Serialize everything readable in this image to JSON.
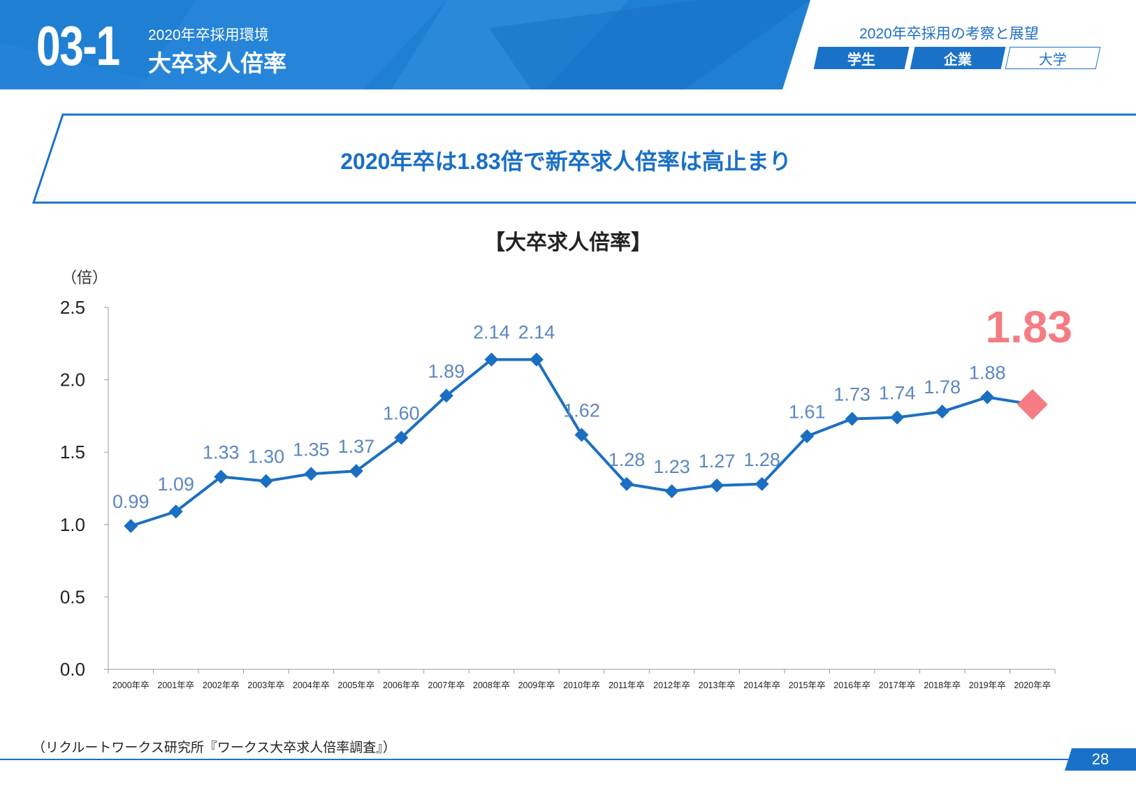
{
  "header": {
    "section_number": "03-1",
    "section_subtitle": "2020年卒採用環境",
    "section_title": "大卒求人倍率",
    "series_title": "2020年卒採用の考察と展望",
    "tags": [
      "学生",
      "企業",
      "大学"
    ],
    "active_tags": [
      "学生",
      "企業"
    ]
  },
  "headline": "2020年卒は1.83倍で新卒求人倍率は高止まり",
  "footnote": "（リクルートワークス研究所『ワークス大卒求人倍率調査』）",
  "page_number": "28",
  "colors": {
    "brand_blue": "#1a72c8",
    "line_blue": "#1b6fc2",
    "label_blue": "#5b87c0",
    "highlight": "#f47c82"
  },
  "chart_data": {
    "type": "line",
    "title": "【大卒求人倍率】",
    "ylabel": "（倍）",
    "xlabel": "",
    "ylim": [
      0,
      2.5
    ],
    "yticks": [
      "0.0",
      "0.5",
      "1.0",
      "1.5",
      "2.0",
      "2.5"
    ],
    "categories": [
      "2000年卒",
      "2001年卒",
      "2002年卒",
      "2003年卒",
      "2004年卒",
      "2005年卒",
      "2006年卒",
      "2007年卒",
      "2008年卒",
      "2009年卒",
      "2010年卒",
      "2011年卒",
      "2012年卒",
      "2013年卒",
      "2014年卒",
      "2015年卒",
      "2016年卒",
      "2017年卒",
      "2018年卒",
      "2019年卒",
      "2020年卒"
    ],
    "values": [
      0.99,
      1.09,
      1.33,
      1.3,
      1.35,
      1.37,
      1.6,
      1.89,
      2.14,
      2.14,
      1.62,
      1.28,
      1.23,
      1.27,
      1.28,
      1.61,
      1.73,
      1.74,
      1.78,
      1.88,
      1.83
    ],
    "value_labels": [
      "0.99",
      "1.09",
      "1.33",
      "1.30",
      "1.35",
      "1.37",
      "1.60",
      "1.89",
      "2.14",
      "2.14",
      "1.62",
      "1.28",
      "1.23",
      "1.27",
      "1.28",
      "1.61",
      "1.73",
      "1.74",
      "1.78",
      "1.88",
      "1.83"
    ],
    "highlight_index": 20,
    "grid": false
  }
}
